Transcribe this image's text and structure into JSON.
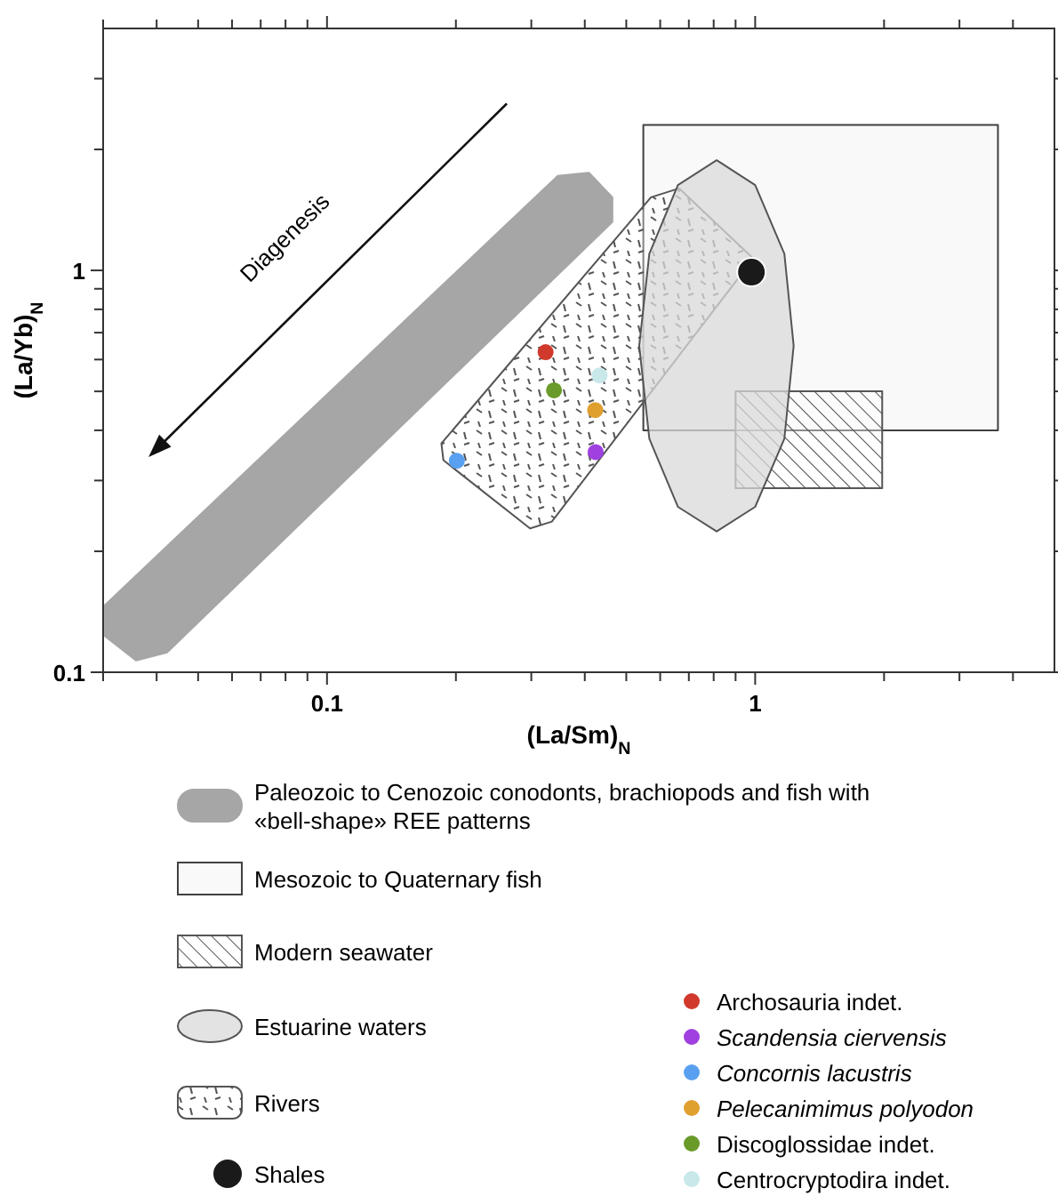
{
  "chart_data": {
    "type": "scatter",
    "xlabel": "(La/Sm)$_{N}$",
    "ylabel": "(La/Yb)$_{N}$",
    "log": "xy",
    "legend": "bottom",
    "xlim": [
      0.03,
      5
    ],
    "ylim": [
      0.1,
      4
    ],
    "xticks": [
      {
        "value": 0.03,
        "label": null
      },
      {
        "value": 0.04,
        "label": null
      },
      {
        "value": 0.05,
        "label": null
      },
      {
        "value": 0.06,
        "label": null
      },
      {
        "value": 0.07,
        "label": null
      },
      {
        "value": 0.08,
        "label": null
      },
      {
        "value": 0.09,
        "label": null
      },
      0.1,
      {
        "value": 0.2,
        "label": null
      },
      {
        "value": 0.3,
        "label": null
      },
      {
        "value": 0.4,
        "label": null
      },
      {
        "value": 0.5,
        "label": null
      },
      {
        "value": 0.6,
        "label": null
      },
      {
        "value": 0.7,
        "label": null
      },
      {
        "value": 0.8,
        "label": null
      },
      {
        "value": 0.9,
        "label": null
      },
      1,
      {
        "value": 2,
        "label": null
      },
      {
        "value": 3,
        "label": null
      },
      {
        "value": 4,
        "label": null
      }
    ],
    "yticks": [
      0.1,
      {
        "value": 0.2,
        "label": null
      },
      {
        "value": 0.3,
        "label": null
      },
      {
        "value": 0.4,
        "label": null
      },
      {
        "value": 0.5,
        "label": null
      },
      {
        "value": 0.6,
        "label": null
      },
      {
        "value": 0.7,
        "label": null
      },
      {
        "value": 0.8,
        "label": null
      },
      {
        "value": 0.9,
        "label": null
      },
      1,
      {
        "value": 2,
        "label": null
      },
      {
        "value": 3,
        "label": null
      }
    ],
    "annotations": [
      "Diagenesis"
    ],
    "series": [
      {
        "type": "area",
        "name": "Paleozoic to Cenozoic conodonts, brachiopods and fish with «bell-shape» REE patterns",
        "color": "#a6a6a6",
        "x": [
          0.346,
          0.409,
          0.464,
          0.464,
          0.0423,
          0.0358,
          0.0303,
          0.0303
        ],
        "values": [
          1.72,
          1.75,
          1.52,
          1.32,
          0.112,
          0.107,
          0.123,
          0.147
        ]
      },
      {
        "type": "area",
        "name": "Mesozoic to Quaternary fish",
        "color": "#404040",
        "x": [
          0.548,
          3.69,
          3.69,
          0.548
        ],
        "values": [
          2.3,
          2.3,
          0.4,
          0.4
        ]
      },
      {
        "type": "area",
        "name": "Modern seawater",
        "color": "#555555",
        "x": [
          0.9,
          1.98,
          1.98,
          0.9
        ],
        "values": [
          0.5,
          0.5,
          0.287,
          0.287
        ]
      },
      {
        "type": "area",
        "name": "Estuarine waters",
        "color": "#d9d9d9",
        "x": [
          1.23,
          1.17,
          1.0,
          0.813,
          0.66,
          0.566,
          0.536,
          0.566,
          0.66,
          0.813,
          1.0,
          1.17
        ],
        "values": [
          0.649,
          1.1,
          1.63,
          1.88,
          1.63,
          1.1,
          0.649,
          0.381,
          0.258,
          0.224,
          0.258,
          0.381
        ]
      },
      {
        "type": "area",
        "name": "Rivers",
        "color": "#555555",
        "x": [
          0.571,
          0.664,
          0.99,
          0.335,
          0.298,
          0.187,
          0.185
        ],
        "values": [
          1.52,
          1.6,
          1.07,
          0.237,
          0.228,
          0.337,
          0.371
        ]
      },
      {
        "name": "Shales",
        "color": "#1a1a1a",
        "x": [
          0.98
        ],
        "values": [
          0.99
        ]
      },
      {
        "name": "Archosauria indet.",
        "color": "#d0392b",
        "x": [
          0.324
        ],
        "values": [
          0.626
        ]
      },
      {
        "name": "Scandensia ciervensis",
        "color": "#a040e0",
        "x": [
          0.424
        ],
        "values": [
          0.353
        ]
      },
      {
        "name": "Concornis lacustris",
        "color": "#5aa0f0",
        "x": [
          0.201
        ],
        "values": [
          0.336
        ]
      },
      {
        "name": "Pelecanimimus polyodon",
        "color": "#e0a030",
        "x": [
          0.423
        ],
        "values": [
          0.449
        ]
      },
      {
        "name": "Discoglossidae indet.",
        "color": "#6a9a2a",
        "x": [
          0.339
        ],
        "values": [
          0.503
        ]
      },
      {
        "name": "Centrocryptodira indet.",
        "color": "#c8e8ea",
        "x": [
          0.433
        ],
        "values": [
          0.548
        ]
      }
    ]
  }
}
